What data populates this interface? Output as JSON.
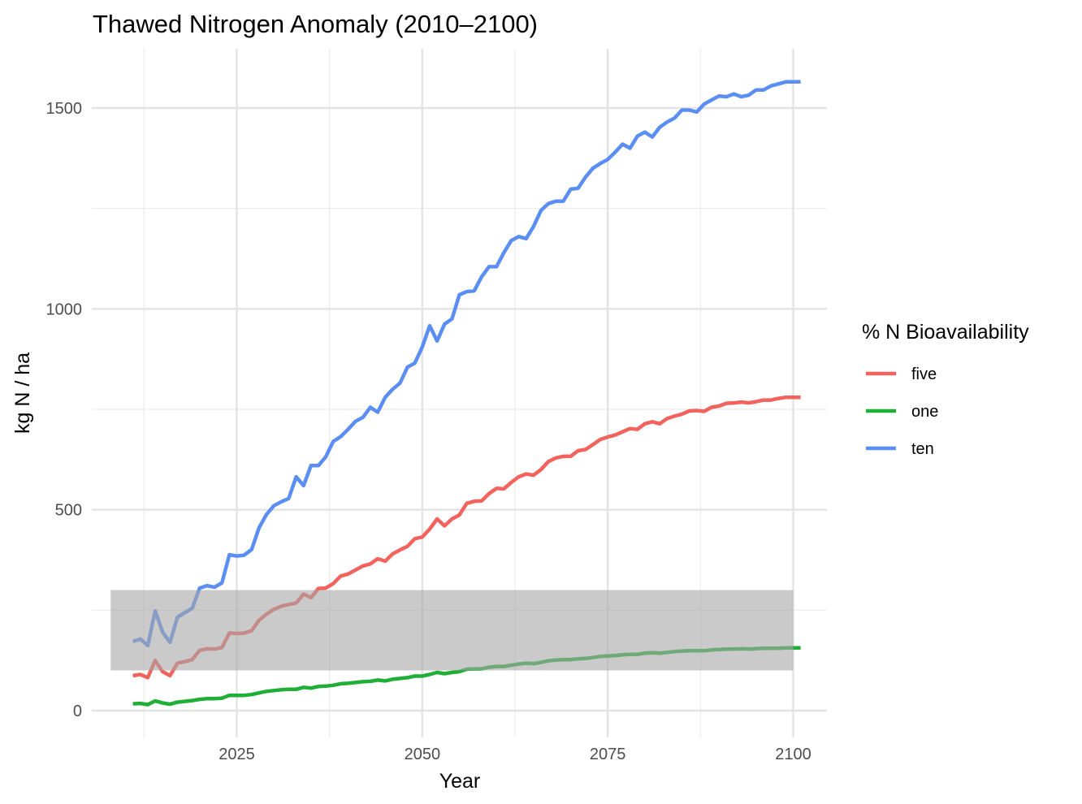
{
  "chart_data": {
    "type": "line",
    "title": "Thawed Nitrogen Anomaly (2010–2100)",
    "xlabel": "Year",
    "ylabel": "kg N / ha",
    "xlim": [
      2010,
      2100
    ],
    "ylim": [
      0,
      1600
    ],
    "x_ticks": [
      2025,
      2050,
      2075,
      2100
    ],
    "y_ticks": [
      0,
      500,
      1000,
      1500
    ],
    "grid": true,
    "legend": {
      "title": "% N Bioavailability",
      "position": "right"
    },
    "shaded_band": {
      "x": [
        2008,
        2100
      ],
      "y": [
        100,
        300
      ],
      "color": "#a6a6a6"
    },
    "x": [
      2010,
      2011,
      2012,
      2013,
      2014,
      2015,
      2016,
      2017,
      2018,
      2019,
      2020,
      2021,
      2022,
      2023,
      2024,
      2025,
      2026,
      2027,
      2028,
      2029,
      2030,
      2031,
      2032,
      2033,
      2034,
      2035,
      2036,
      2037,
      2038,
      2039,
      2040,
      2041,
      2042,
      2043,
      2044,
      2045,
      2046,
      2047,
      2048,
      2049,
      2050,
      2051,
      2052,
      2053,
      2054,
      2055,
      2056,
      2057,
      2058,
      2059,
      2060,
      2061,
      2062,
      2063,
      2064,
      2065,
      2066,
      2067,
      2068,
      2069,
      2070,
      2071,
      2072,
      2073,
      2074,
      2075,
      2076,
      2077,
      2078,
      2079,
      2080,
      2081,
      2082,
      2083,
      2084,
      2085,
      2086,
      2087,
      2088,
      2089,
      2090,
      2091,
      2092,
      2093,
      2094,
      2095,
      2096,
      2097,
      2098,
      2099,
      2100
    ],
    "series": [
      {
        "name": "five",
        "color": "#f2635e",
        "values": [
          87,
          90,
          82,
          125,
          97,
          87,
          118,
          122,
          127,
          150,
          154,
          153,
          157,
          193,
          192,
          193,
          199,
          225,
          240,
          252,
          260,
          264,
          268,
          290,
          281,
          304,
          305,
          316,
          335,
          340,
          350,
          360,
          365,
          378,
          372,
          390,
          400,
          409,
          428,
          432,
          452,
          477,
          460,
          477,
          487,
          516,
          521,
          522,
          540,
          553,
          552,
          568,
          582,
          589,
          586,
          600,
          620,
          629,
          633,
          633,
          647,
          650,
          662,
          675,
          681,
          686,
          694,
          702,
          700,
          714,
          719,
          714,
          727,
          733,
          738,
          746,
          747,
          745,
          755,
          758,
          765,
          766,
          768,
          766,
          769,
          773,
          773,
          777,
          780,
          780,
          780
        ]
      },
      {
        "name": "one",
        "color": "#1fae36",
        "values": [
          17,
          18,
          15,
          24,
          19,
          16,
          21,
          23,
          25,
          28,
          30,
          30,
          31,
          38,
          38,
          38,
          40,
          44,
          48,
          50,
          52,
          53,
          53,
          58,
          56,
          60,
          61,
          63,
          67,
          68,
          70,
          72,
          73,
          76,
          74,
          78,
          80,
          82,
          86,
          86,
          90,
          95,
          92,
          95,
          97,
          103,
          104,
          104,
          108,
          110,
          110,
          113,
          116,
          118,
          117,
          120,
          124,
          126,
          127,
          127,
          129,
          130,
          132,
          135,
          136,
          137,
          139,
          140,
          140,
          143,
          144,
          143,
          145,
          147,
          148,
          149,
          149,
          149,
          151,
          152,
          153,
          153,
          154,
          153,
          154,
          155,
          155,
          155,
          156,
          156,
          156
        ]
      },
      {
        "name": "ten",
        "color": "#5b8ef2",
        "values": [
          172,
          178,
          162,
          248,
          195,
          170,
          232,
          244,
          255,
          305,
          311,
          307,
          318,
          388,
          385,
          387,
          401,
          455,
          488,
          510,
          520,
          528,
          582,
          560,
          610,
          610,
          632,
          670,
          682,
          700,
          720,
          730,
          755,
          743,
          780,
          800,
          815,
          855,
          865,
          905,
          958,
          920,
          962,
          975,
          1035,
          1043,
          1045,
          1080,
          1105,
          1105,
          1140,
          1170,
          1180,
          1175,
          1205,
          1245,
          1262,
          1268,
          1268,
          1298,
          1300,
          1328,
          1350,
          1362,
          1372,
          1390,
          1410,
          1400,
          1430,
          1440,
          1428,
          1452,
          1465,
          1475,
          1495,
          1495,
          1490,
          1510,
          1520,
          1530,
          1528,
          1535,
          1528,
          1532,
          1545,
          1545,
          1555,
          1560,
          1565,
          1565,
          1565
        ]
      }
    ]
  }
}
